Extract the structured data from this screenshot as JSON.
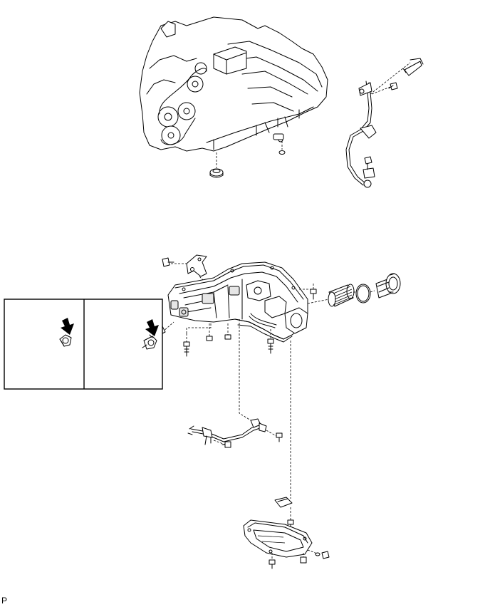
{
  "figure": {
    "code": "P"
  },
  "parts": [
    "engine-assembly",
    "oil-cooler-pipe",
    "oil-pan-no1",
    "oil-filter-element",
    "oil-filter-o-ring",
    "oil-filter-cap",
    "oil-level-gauge-guide",
    "oil-pan-no2",
    "drain-plug",
    "oil-pressure-switch",
    "bolt"
  ],
  "icons": {
    "arrow": "down-arrow-icon"
  }
}
